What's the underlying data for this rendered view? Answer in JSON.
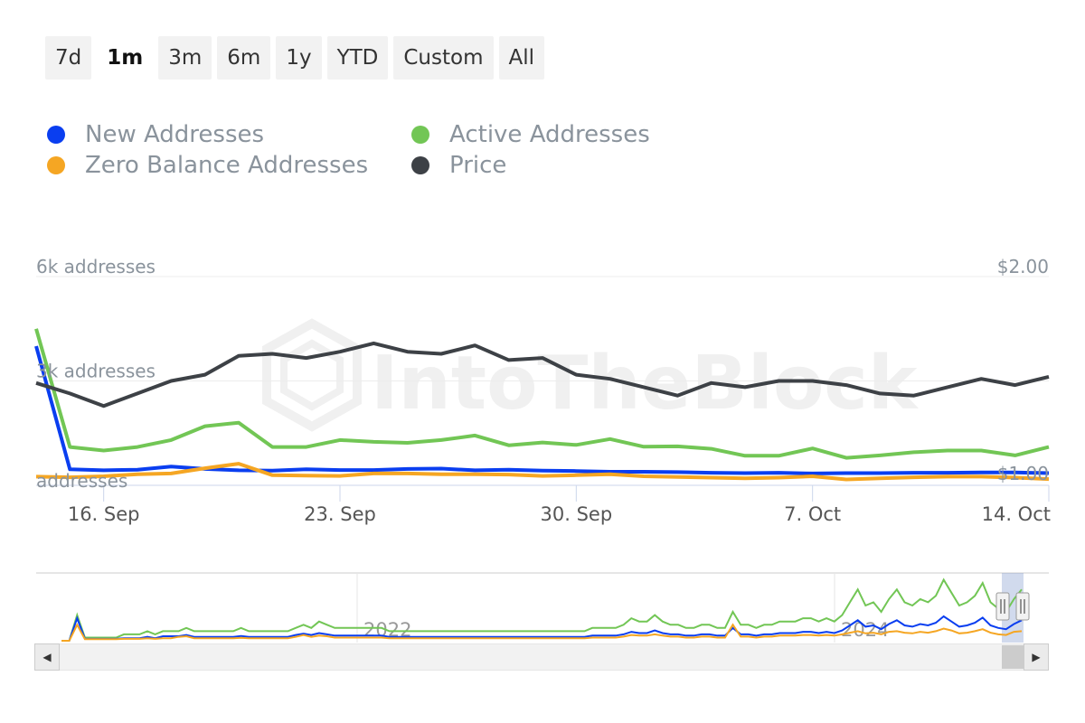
{
  "range_selector": {
    "buttons": [
      "7d",
      "1m",
      "3m",
      "6m",
      "1y",
      "YTD",
      "Custom",
      "All"
    ],
    "selected": "1m"
  },
  "legend": [
    {
      "label": "New Addresses",
      "color": "#0a3ef0"
    },
    {
      "label": "Active Addresses",
      "color": "#72c655"
    },
    {
      "label": "Zero Balance Addresses",
      "color": "#f5a623"
    },
    {
      "label": "Price",
      "color": "#3d4146"
    }
  ],
  "watermark": "IntoTheBlock",
  "chart_data": {
    "type": "line",
    "x": [
      "14. Sep",
      "15. Sep",
      "16. Sep",
      "17. Sep",
      "18. Sep",
      "19. Sep",
      "20. Sep",
      "21. Sep",
      "22. Sep",
      "23. Sep",
      "24. Sep",
      "25. Sep",
      "26. Sep",
      "27. Sep",
      "28. Sep",
      "29. Sep",
      "30. Sep",
      "1. Oct",
      "2. Oct",
      "3. Oct",
      "4. Oct",
      "5. Oct",
      "6. Oct",
      "7. Oct",
      "8. Oct",
      "9. Oct",
      "10. Oct",
      "11. Oct",
      "12. Oct",
      "13. Oct",
      "14. Oct"
    ],
    "x_ticks": [
      "16. Sep",
      "23. Sep",
      "30. Sep",
      "7. Oct",
      "14. Oct"
    ],
    "series": [
      {
        "name": "New Addresses",
        "axis": "left",
        "color": "#0a3ef0",
        "values": [
          4000,
          460,
          430,
          450,
          540,
          470,
          430,
          420,
          460,
          440,
          440,
          470,
          480,
          430,
          450,
          420,
          410,
          390,
          390,
          380,
          360,
          350,
          360,
          340,
          350,
          350,
          360,
          360,
          370,
          370,
          350
        ]
      },
      {
        "name": "Active Addresses",
        "axis": "left",
        "color": "#72c655",
        "values": [
          4500,
          1100,
          1000,
          1100,
          1300,
          1700,
          1800,
          1100,
          1100,
          1300,
          1250,
          1220,
          1300,
          1430,
          1150,
          1230,
          1160,
          1330,
          1110,
          1120,
          1050,
          850,
          850,
          1060,
          790,
          860,
          950,
          1000,
          1000,
          860,
          1100
        ]
      },
      {
        "name": "Zero Balance Addresses",
        "axis": "left",
        "color": "#f5a623",
        "values": [
          250,
          230,
          260,
          320,
          340,
          490,
          620,
          290,
          280,
          270,
          340,
          340,
          320,
          320,
          310,
          270,
          290,
          320,
          260,
          240,
          220,
          200,
          220,
          260,
          170,
          200,
          230,
          250,
          250,
          220,
          180
        ]
      },
      {
        "name": "Price",
        "axis": "right",
        "color": "#3d4146",
        "values": [
          1.49,
          1.44,
          1.38,
          1.44,
          1.5,
          1.53,
          1.62,
          1.63,
          1.61,
          1.64,
          1.68,
          1.64,
          1.63,
          1.67,
          1.6,
          1.61,
          1.53,
          1.51,
          1.47,
          1.43,
          1.49,
          1.47,
          1.5,
          1.5,
          1.48,
          1.44,
          1.43,
          1.47,
          1.51,
          1.48,
          1.52
        ]
      }
    ],
    "y_left": {
      "ticks": [
        "6k addresses",
        "3k addresses",
        "addresses"
      ],
      "tick_values": [
        6000,
        3000,
        0
      ],
      "range": [
        0,
        6000
      ]
    },
    "y_right": {
      "ticks": [
        "$2.00",
        "$1.00"
      ],
      "tick_values": [
        2.0,
        1.0
      ],
      "range": [
        1.0,
        2.0
      ]
    },
    "grid": true,
    "legend_position": "top-left"
  },
  "navigator": {
    "labels": [
      "2022",
      "2024"
    ],
    "series": [
      {
        "name": "Active Addresses",
        "color": "#72c655",
        "values": [
          0,
          0,
          8,
          1,
          1,
          1,
          1,
          1,
          2,
          2,
          2,
          3,
          2,
          3,
          3,
          3,
          4,
          3,
          3,
          3,
          3,
          3,
          3,
          4,
          3,
          3,
          3,
          3,
          3,
          3,
          4,
          5,
          4,
          6,
          5,
          4,
          4,
          4,
          4,
          4,
          4,
          4,
          3,
          3,
          3,
          3,
          3,
          3,
          3,
          3,
          3,
          3,
          3,
          3,
          3,
          3,
          3,
          3,
          3,
          3,
          3,
          3,
          3,
          3,
          3,
          3,
          3,
          3,
          4,
          4,
          4,
          4,
          5,
          7,
          6,
          6,
          8,
          6,
          5,
          5,
          4,
          4,
          5,
          5,
          4,
          4,
          9,
          5,
          5,
          4,
          5,
          5,
          6,
          6,
          6,
          7,
          7,
          6,
          7,
          6,
          8,
          12,
          16,
          11,
          12,
          9,
          13,
          16,
          12,
          11,
          13,
          12,
          14,
          19,
          15,
          11,
          12,
          14,
          18,
          12,
          10,
          9,
          13,
          16
        ]
      },
      {
        "name": "New Addresses",
        "color": "#0a3ef0",
        "values": [
          0,
          0,
          7,
          0.6,
          0.6,
          0.6,
          0.6,
          0.6,
          0.8,
          0.8,
          0.8,
          1.2,
          0.8,
          1.4,
          1.4,
          1.4,
          1.8,
          1.2,
          1.2,
          1.2,
          1.2,
          1.2,
          1.2,
          1.5,
          1.2,
          1.2,
          1.2,
          1.2,
          1.2,
          1.2,
          1.8,
          2.2,
          1.8,
          2.4,
          2,
          1.6,
          1.6,
          1.6,
          1.6,
          1.6,
          1.6,
          1.6,
          1.2,
          1.2,
          1.2,
          1.2,
          1.2,
          1.2,
          1.2,
          1.2,
          1.2,
          1.2,
          1.2,
          1.2,
          1.2,
          1.2,
          1.2,
          1.2,
          1.2,
          1.2,
          1.2,
          1.2,
          1.2,
          1.2,
          1.2,
          1.2,
          1.2,
          1.2,
          1.6,
          1.6,
          1.6,
          1.6,
          2,
          2.8,
          2.4,
          2.4,
          3.2,
          2.4,
          2,
          2,
          1.6,
          1.6,
          2,
          2,
          1.6,
          1.6,
          4,
          2,
          2,
          1.6,
          2,
          2,
          2.4,
          2.4,
          2.4,
          2.8,
          2.8,
          2.4,
          2.8,
          2.4,
          3.2,
          4.8,
          6.4,
          4.4,
          4.8,
          3.6,
          5.2,
          6.4,
          4.8,
          4.4,
          5.2,
          4.8,
          5.6,
          7.6,
          6,
          4.4,
          4.8,
          5.6,
          7.2,
          4.8,
          4,
          3.6,
          5.2,
          6.4
        ]
      },
      {
        "name": "Zero Balance Addresses",
        "color": "#f5a623",
        "values": [
          0,
          0,
          5,
          0.5,
          0.5,
          0.5,
          0.5,
          0.5,
          0.6,
          0.6,
          0.6,
          0.8,
          0.6,
          0.8,
          0.8,
          1.2,
          1.4,
          0.8,
          0.8,
          0.8,
          0.8,
          0.8,
          0.8,
          0.9,
          0.8,
          0.8,
          0.8,
          0.8,
          0.8,
          0.8,
          1.2,
          1.8,
          1.2,
          1.6,
          1.4,
          1,
          1,
          1,
          1,
          1,
          1,
          1,
          0.8,
          0.8,
          0.8,
          0.8,
          0.8,
          0.8,
          0.8,
          0.8,
          0.8,
          0.8,
          0.8,
          0.8,
          0.8,
          0.8,
          0.8,
          0.8,
          0.8,
          0.8,
          0.8,
          0.8,
          0.8,
          0.8,
          0.8,
          0.8,
          0.8,
          0.8,
          1,
          1,
          1,
          1,
          1.3,
          1.8,
          1.6,
          1.6,
          2,
          1.6,
          1.3,
          1.3,
          1,
          1,
          1.3,
          1.3,
          1,
          1,
          5,
          1.3,
          1.3,
          1,
          1.3,
          1.3,
          1.6,
          1.6,
          1.6,
          1.8,
          1.8,
          1.6,
          1.8,
          1.6,
          2,
          2.5,
          3,
          2.3,
          2.5,
          2,
          2.8,
          3,
          2.5,
          2.3,
          2.8,
          2.5,
          3,
          3.8,
          3.2,
          2.3,
          2.5,
          3,
          3.6,
          2.5,
          2,
          1.8,
          2.8,
          3
        ]
      }
    ]
  }
}
